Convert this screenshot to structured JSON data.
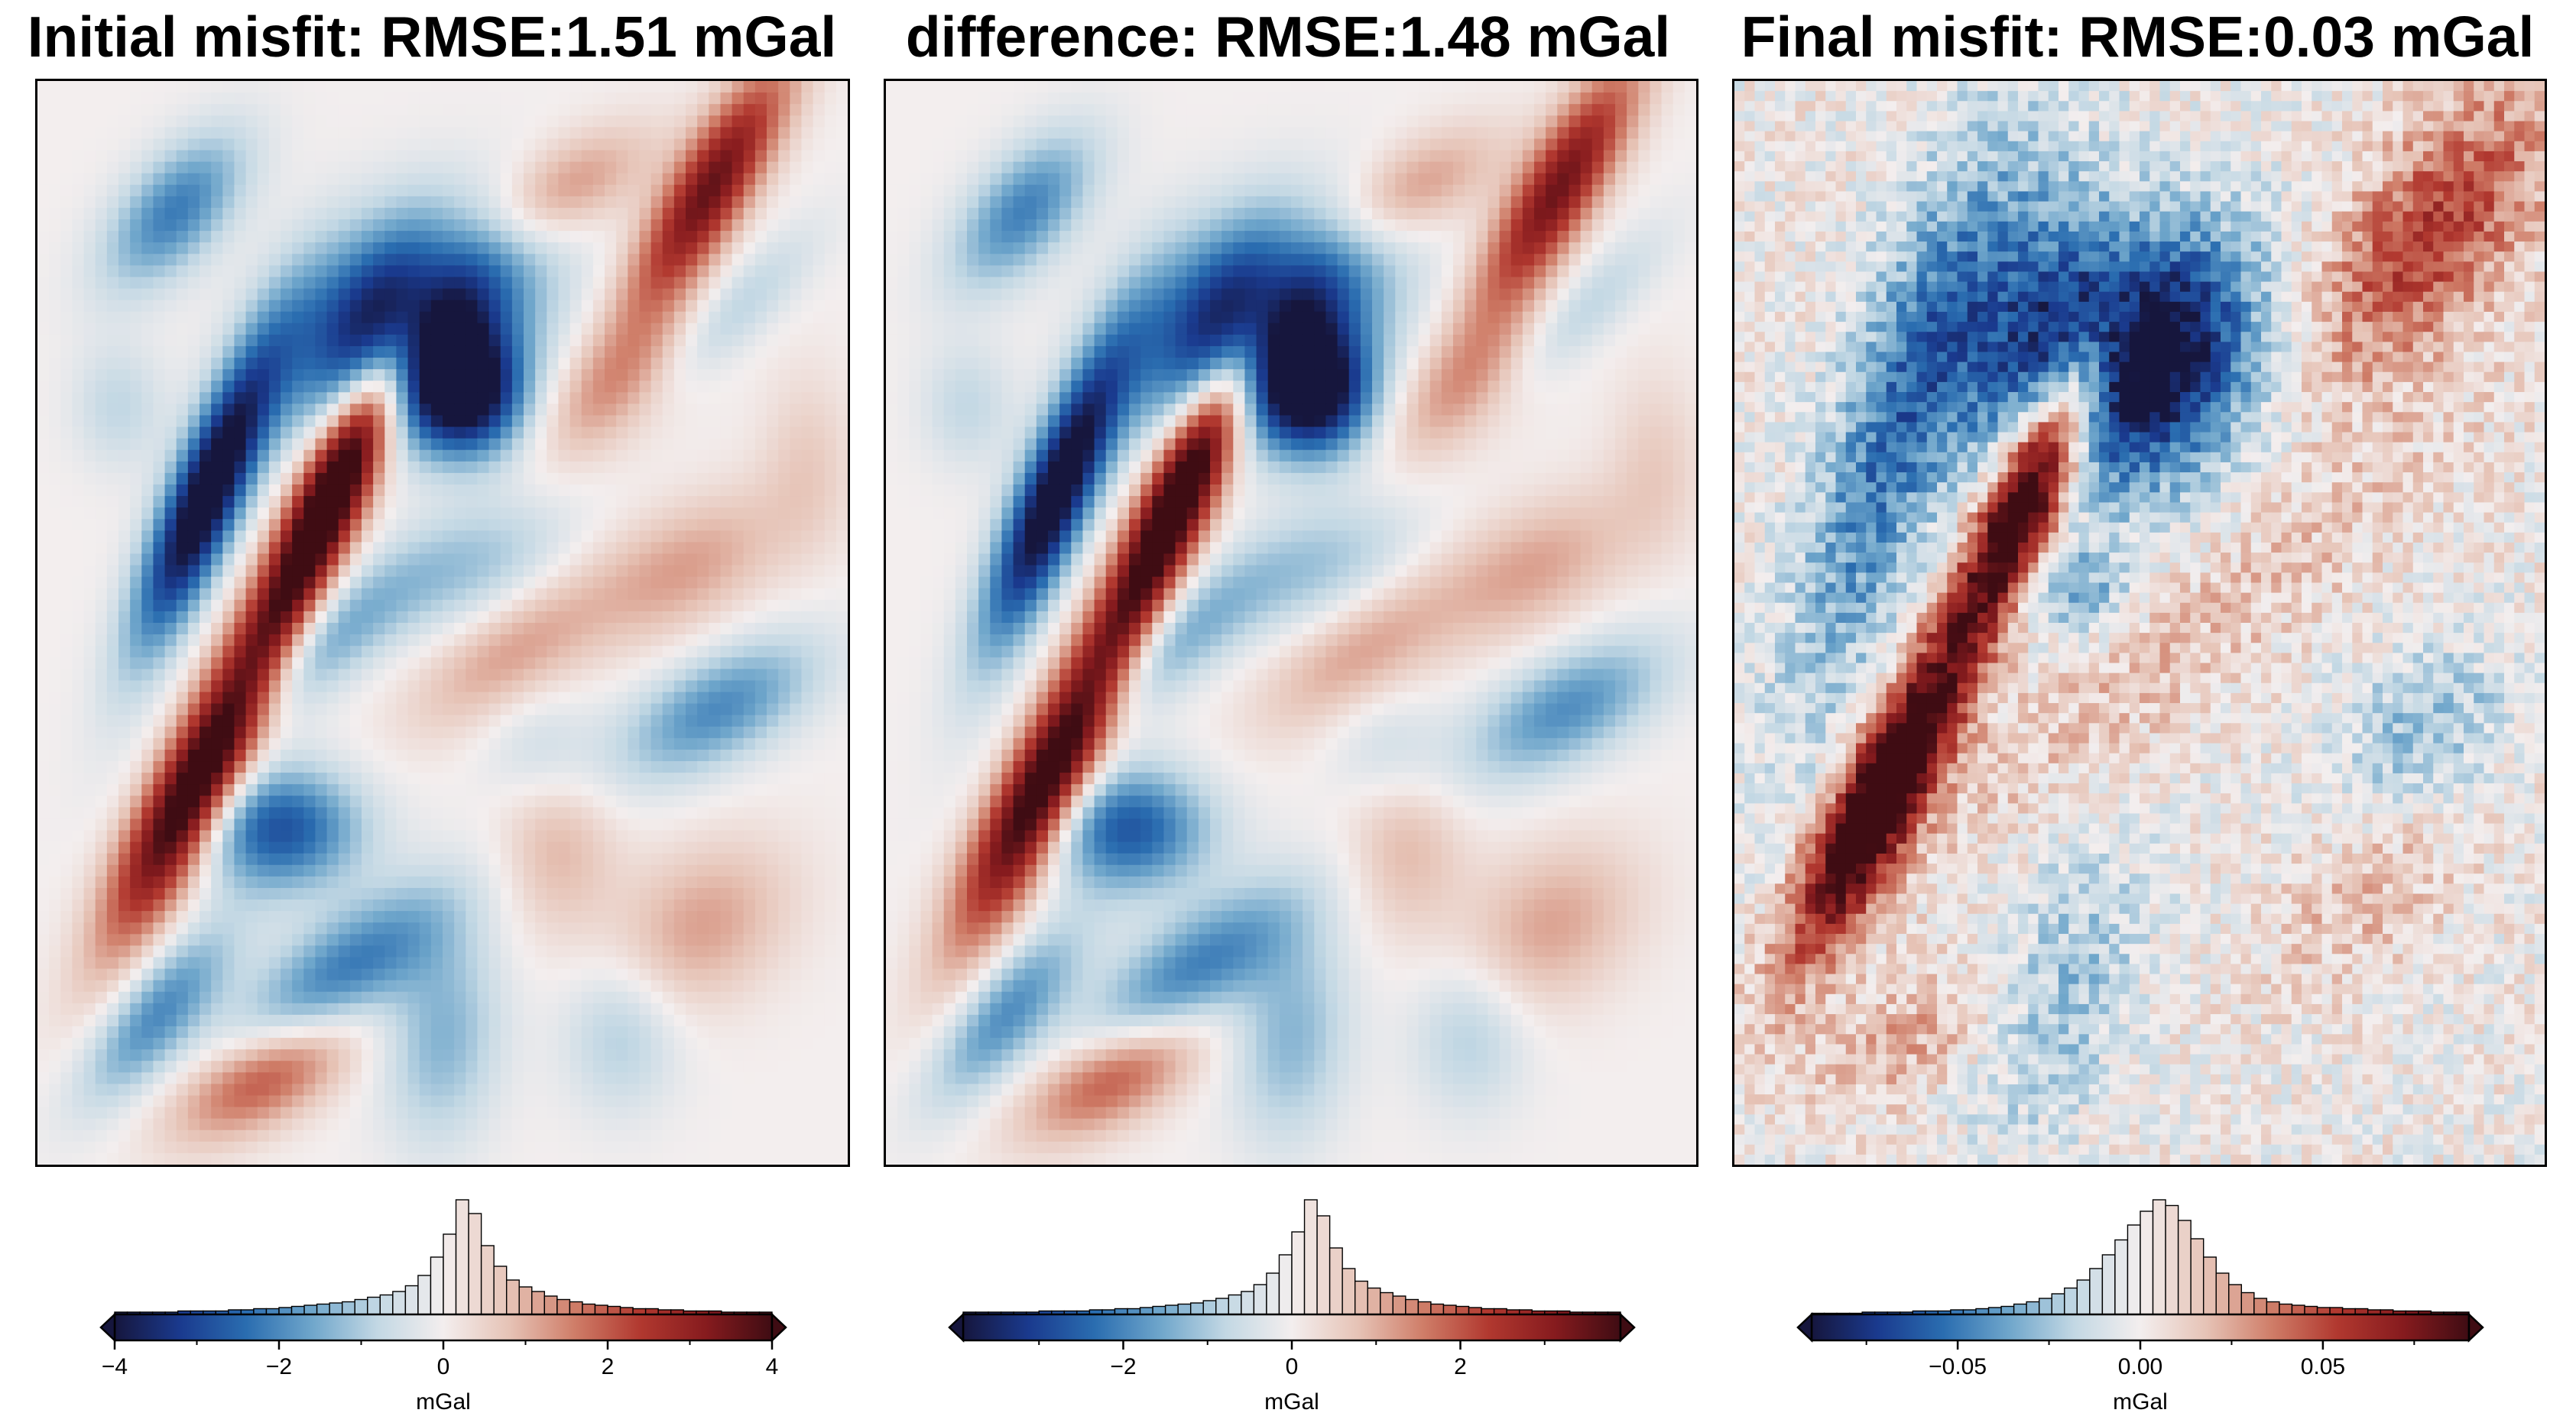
{
  "panels": [
    {
      "id": "initial",
      "title": "Initial misfit: RMSE:1.51 mGal",
      "chart_data": {
        "type": "heatmap",
        "title": "Initial misfit: RMSE:1.51 mGal",
        "colormap": "diverging blue-white-red (balance)",
        "clim": [
          -4,
          4
        ],
        "colorbar": {
          "unit": "mGal",
          "ticks": [
            -4,
            -2,
            0,
            2,
            4
          ],
          "tick_labels": [
            "−4",
            "−2",
            "0",
            "2",
            "4"
          ],
          "extend": "both",
          "histogram_counts": [
            2,
            2,
            2,
            2,
            2,
            3,
            3,
            3,
            3,
            4,
            4,
            5,
            5,
            6,
            7,
            8,
            9,
            10,
            11,
            13,
            15,
            17,
            20,
            25,
            34,
            50,
            70,
            100,
            88,
            60,
            42,
            30,
            24,
            20,
            16,
            13,
            11,
            9,
            8,
            7,
            6,
            5,
            5,
            4,
            4,
            3,
            3,
            3,
            2,
            2,
            2,
            2
          ]
        },
        "anomalies": [
          {
            "sign": "negative",
            "strength": -4.0,
            "description": "star-shaped low, upper centre"
          },
          {
            "sign": "positive",
            "strength": 4.0,
            "description": "elongated high, upper-left centre"
          },
          {
            "sign": "positive",
            "strength": 4.0,
            "description": "elongated high, lower left"
          },
          {
            "sign": "negative",
            "strength": -3.8,
            "description": "elongated low, left of upper high"
          }
        ]
      }
    },
    {
      "id": "difference",
      "title": "difference: RMSE:1.48 mGal",
      "chart_data": {
        "type": "heatmap",
        "title": "difference: RMSE:1.48 mGal",
        "colormap": "diverging blue-white-red (balance)",
        "clim": [
          -3.9,
          3.9
        ],
        "colorbar": {
          "unit": "mGal",
          "ticks": [
            -2,
            0,
            2
          ],
          "tick_labels": [
            "−2",
            "0",
            "2"
          ],
          "extend": "both",
          "histogram_counts": [
            2,
            2,
            2,
            2,
            2,
            2,
            3,
            3,
            3,
            3,
            4,
            4,
            5,
            5,
            6,
            7,
            8,
            9,
            10,
            12,
            14,
            17,
            20,
            26,
            36,
            52,
            72,
            100,
            86,
            58,
            40,
            29,
            23,
            19,
            16,
            13,
            11,
            9,
            8,
            7,
            6,
            5,
            5,
            4,
            4,
            3,
            3,
            3,
            2,
            2,
            2,
            2
          ]
        },
        "anomalies": [
          {
            "sign": "negative",
            "strength": -3.9,
            "description": "star-shaped low, upper centre"
          },
          {
            "sign": "positive",
            "strength": 3.9,
            "description": "elongated high, upper-left centre"
          },
          {
            "sign": "positive",
            "strength": 3.9,
            "description": "elongated high, lower left"
          },
          {
            "sign": "negative",
            "strength": -3.7,
            "description": "elongated low, left of upper high"
          }
        ]
      }
    },
    {
      "id": "final",
      "title": "Final misfit: RMSE:0.03 mGal",
      "chart_data": {
        "type": "heatmap",
        "title": "Final misfit: RMSE:0.03 mGal",
        "colormap": "diverging blue-white-red (balance)",
        "clim": [
          -0.09,
          0.09
        ],
        "colorbar": {
          "unit": "mGal",
          "ticks": [
            -0.05,
            0.0,
            0.05
          ],
          "tick_labels": [
            "−0.05",
            "0.00",
            "0.05"
          ],
          "extend": "both",
          "histogram_counts": [
            1,
            1,
            1,
            1,
            2,
            2,
            2,
            2,
            3,
            3,
            3,
            4,
            4,
            5,
            6,
            7,
            9,
            11,
            14,
            18,
            23,
            30,
            40,
            52,
            65,
            78,
            90,
            100,
            95,
            82,
            66,
            50,
            36,
            26,
            19,
            14,
            11,
            9,
            8,
            7,
            6,
            6,
            5,
            5,
            4,
            4,
            3,
            3,
            3,
            2,
            2,
            2
          ]
        },
        "anomalies": [
          {
            "sign": "negative",
            "strength": -0.09,
            "description": "large low, upper centre"
          },
          {
            "sign": "positive",
            "strength": 0.09,
            "description": "elongated high, upper centre"
          },
          {
            "sign": "positive",
            "strength": 0.09,
            "description": "elongated high, lower left"
          },
          {
            "sign": "positive",
            "strength": 0.05,
            "description": "broad high, upper right"
          }
        ]
      }
    }
  ],
  "colors": {
    "cmap_stops": [
      "#16163d",
      "#1a3a8e",
      "#2a6db0",
      "#6fa6cb",
      "#c3d8e4",
      "#f3eeee",
      "#e6c3b6",
      "#cf7d68",
      "#b1382f",
      "#861b1e",
      "#3f0c13"
    ],
    "frame": "#000000"
  }
}
